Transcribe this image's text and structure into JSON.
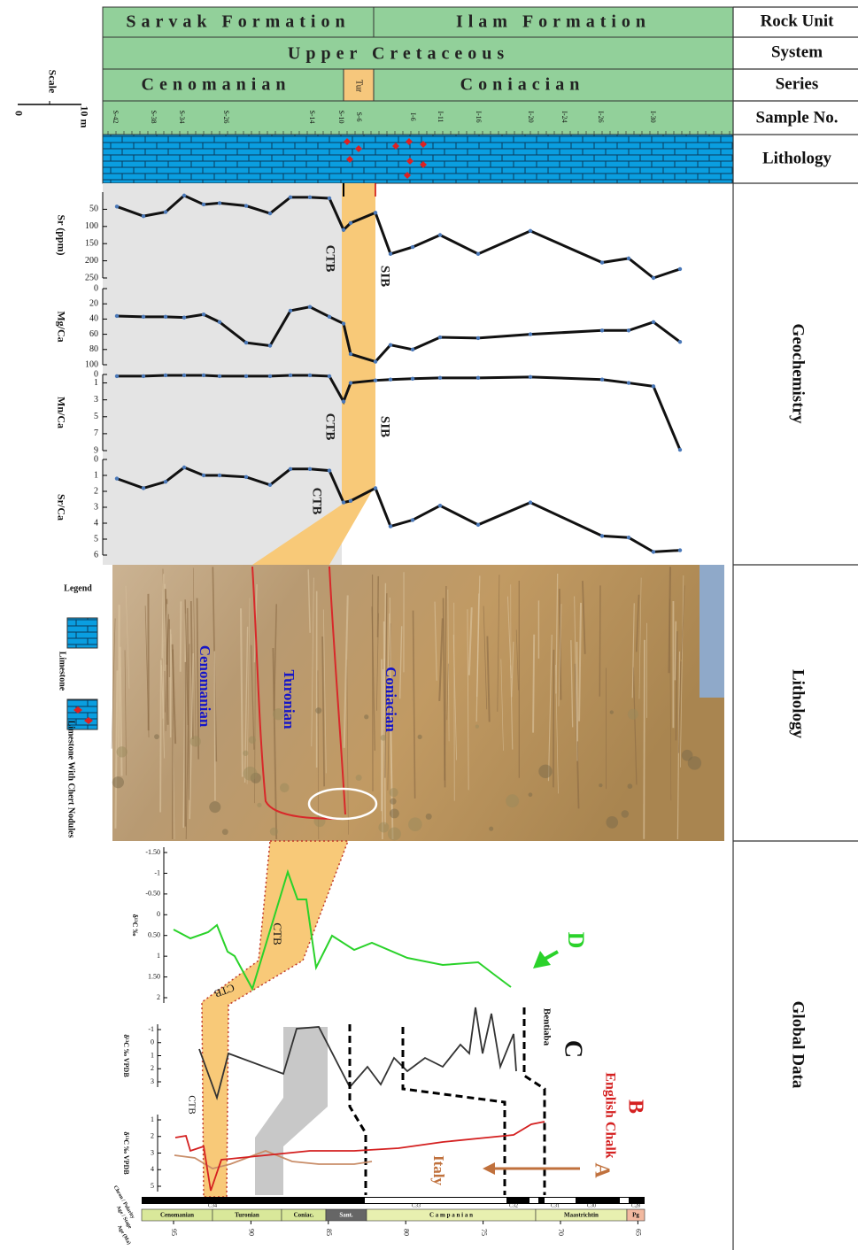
{
  "header": {
    "rock_unit": {
      "label": "Rock Unit",
      "items": [
        "Sarvak Formation",
        "Ilam Formation"
      ]
    },
    "system": {
      "label": "System",
      "items": [
        "Upper Cretaceous"
      ]
    },
    "series": {
      "label": "Series",
      "items": [
        "Cenomanian",
        "Tur",
        "Coniacian"
      ]
    },
    "samples": {
      "label": "Sample No.",
      "items": [
        "S-42",
        "S-38",
        "S-34",
        "S-26",
        "S-14",
        "S-10",
        "S-6",
        "I-6",
        "I-11",
        "I-16",
        "I-20",
        "I-24",
        "I-26",
        "I-30"
      ]
    },
    "lithology": {
      "label": "Lithology"
    }
  },
  "scale": {
    "title": "Scale",
    "min": "0",
    "max": "10 m"
  },
  "geochemistry": {
    "label": "Geochemistry",
    "panels": [
      {
        "name": "Sr (ppm)",
        "ylim": [
          0,
          250
        ],
        "yticks": [
          50,
          100,
          150,
          200,
          250
        ],
        "values": [
          42,
          70,
          58,
          10,
          36,
          32,
          40,
          62,
          15,
          15,
          18,
          110,
          90,
          60,
          180,
          160,
          125,
          180,
          113,
          205,
          193,
          250,
          224
        ]
      },
      {
        "name": "Mg/Ca",
        "ylim": [
          0,
          100
        ],
        "yticks": [
          0,
          20,
          40,
          60,
          80,
          100
        ],
        "values": [
          36,
          37,
          37,
          38,
          34,
          44,
          71,
          75,
          29,
          24,
          37,
          46,
          86,
          96,
          74,
          80,
          64,
          65,
          60,
          55,
          55,
          44,
          70
        ]
      },
      {
        "name": "Mn/Ca",
        "ylim": [
          0,
          9
        ],
        "yticks": [
          0,
          1,
          3,
          5,
          7,
          9
        ],
        "values": [
          0.2,
          0.2,
          0.1,
          0.1,
          0.1,
          0.2,
          0.2,
          0.2,
          0.1,
          0.1,
          0.2,
          3.2,
          1.0,
          0.7,
          0.6,
          0.5,
          0.4,
          0.4,
          0.3,
          0.6,
          1.0,
          1.4,
          8.9
        ]
      },
      {
        "name": "Sr/Ca",
        "ylim": [
          0,
          6
        ],
        "yticks": [
          0,
          1,
          2,
          3,
          4,
          5,
          6
        ],
        "values": [
          1.2,
          1.8,
          1.4,
          0.5,
          1.0,
          1.0,
          1.1,
          1.6,
          0.6,
          0.6,
          0.7,
          2.7,
          2.6,
          1.8,
          4.2,
          3.8,
          2.9,
          4.1,
          2.7,
          4.8,
          4.9,
          5.8,
          5.7
        ]
      }
    ],
    "annotations": [
      "CTB",
      "SIB",
      "CTB",
      "SIB",
      "CTB"
    ]
  },
  "lithology": {
    "label": "Lithology",
    "photo_labels": [
      "Cenomanian",
      "Turonian",
      "Coniacian"
    ],
    "legend": {
      "title": "Legend",
      "items": [
        "Limestone",
        "Limestone With Chert Nodules"
      ]
    }
  },
  "global_data": {
    "label": "Global Data",
    "panels": [
      {
        "axis_label": "δ¹³C ‰",
        "ticks": [
          "-1.50",
          "-1",
          "-0.50",
          "0",
          "0.50",
          "1",
          "1.50",
          "2"
        ]
      },
      {
        "axis_label": "δ¹³C ‰ VPDB",
        "ticks": [
          "-1",
          "0",
          "1",
          "2",
          "3"
        ]
      },
      {
        "axis_label": "δ¹³C ‰ VPDB",
        "ticks": [
          "1",
          "2",
          "3",
          "4",
          "5"
        ]
      }
    ],
    "annotations": {
      "d": "D",
      "c": "C",
      "c_site": "Bentiaba",
      "b": "B",
      "b_site": "English Chalk",
      "a": "A",
      "a_site": "Italy",
      "ctb": [
        "CTB",
        "CTB",
        "CTB"
      ]
    },
    "timescale": {
      "row_labels": [
        "Chron / Polarity",
        "Age / Stage",
        "Age (Ma)"
      ],
      "chrons": [
        "C34",
        "C33",
        "C32",
        "C31",
        "C30",
        "C28"
      ],
      "stages": [
        "Cenomanian",
        "Turonian",
        "Coniac.",
        "Sant.",
        "C a m p a n i a n",
        "Maastrichtin",
        "Pg"
      ],
      "ages": [
        "95",
        "90",
        "85",
        "80",
        "75",
        "70",
        "65"
      ]
    }
  }
}
